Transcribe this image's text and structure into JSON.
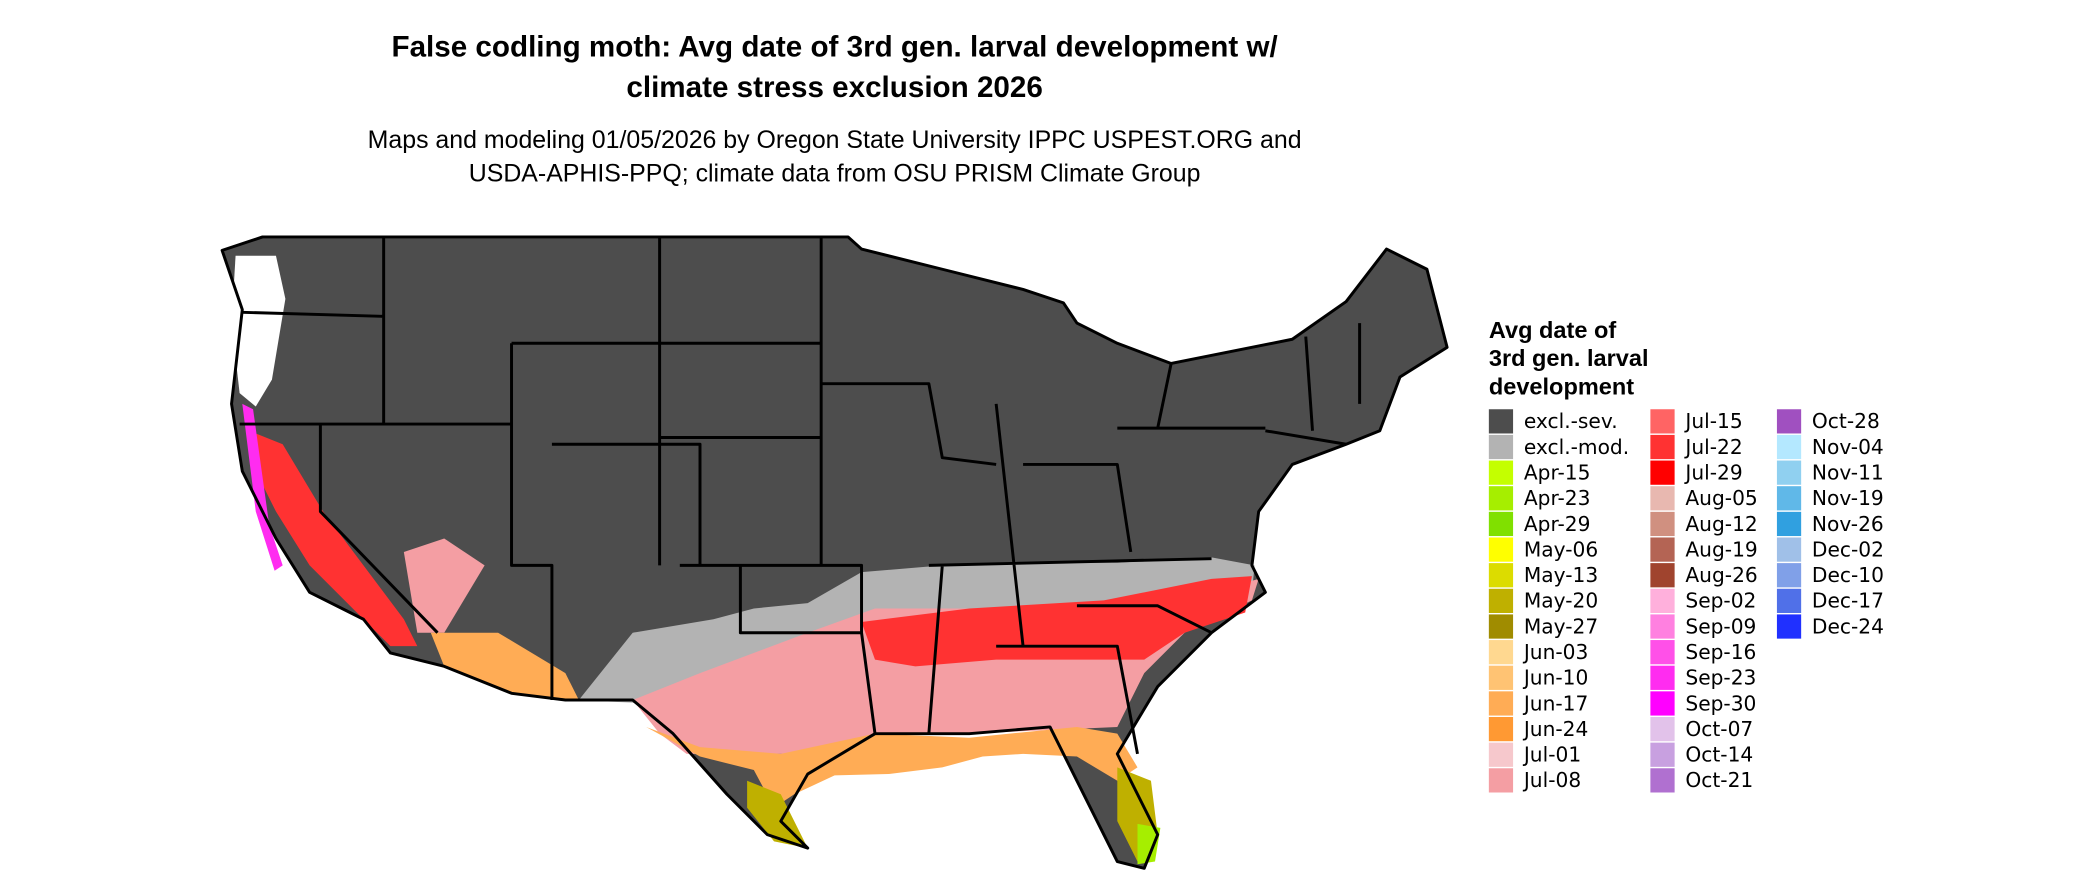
{
  "header": {
    "title_lines": [
      "False codling moth: Avg date of 3rd gen. larval development w/",
      "climate stress exclusion 2026"
    ],
    "subtitle_lines": [
      "Maps and modeling 01/05/2026 by Oregon State University IPPC USPEST.ORG and",
      "USDA-APHIS-PPQ; climate data from OSU PRISM Climate Group"
    ]
  },
  "legend": {
    "title_lines": [
      "Avg date of",
      "3rd gen. larval",
      "development"
    ],
    "items": [
      {
        "label": "excl.-sev.",
        "color": "#4d4d4d"
      },
      {
        "label": "excl.-mod.",
        "color": "#b3b3b3"
      },
      {
        "label": "Apr-15",
        "color": "#c4ff00"
      },
      {
        "label": "Apr-23",
        "color": "#a6ee00"
      },
      {
        "label": "Apr-29",
        "color": "#80e000"
      },
      {
        "label": "May-06",
        "color": "#ffff00"
      },
      {
        "label": "May-13",
        "color": "#dcdc00"
      },
      {
        "label": "May-20",
        "color": "#bfb000"
      },
      {
        "label": "May-27",
        "color": "#a08c00"
      },
      {
        "label": "Jun-03",
        "color": "#ffd890"
      },
      {
        "label": "Jun-10",
        "color": "#ffc373"
      },
      {
        "label": "Jun-17",
        "color": "#ffac55"
      },
      {
        "label": "Jun-24",
        "color": "#ff9933"
      },
      {
        "label": "Jul-01",
        "color": "#f6c8cc"
      },
      {
        "label": "Jul-08",
        "color": "#f49ea3"
      },
      {
        "label": "Jul-15",
        "color": "#ff6464"
      },
      {
        "label": "Jul-22",
        "color": "#ff3232"
      },
      {
        "label": "Jul-29",
        "color": "#ff0000"
      },
      {
        "label": "Aug-05",
        "color": "#e8b8b0"
      },
      {
        "label": "Aug-12",
        "color": "#d09080"
      },
      {
        "label": "Aug-19",
        "color": "#b46454"
      },
      {
        "label": "Aug-26",
        "color": "#a0442e"
      },
      {
        "label": "Sep-02",
        "color": "#ffb0dc"
      },
      {
        "label": "Sep-09",
        "color": "#ff80e0"
      },
      {
        "label": "Sep-16",
        "color": "#ff50e8"
      },
      {
        "label": "Sep-23",
        "color": "#ff2cf0"
      },
      {
        "label": "Sep-30",
        "color": "#ff00ff"
      },
      {
        "label": "Oct-07",
        "color": "#e2c2ea"
      },
      {
        "label": "Oct-14",
        "color": "#c8a0e0"
      },
      {
        "label": "Oct-21",
        "color": "#b070d0"
      },
      {
        "label": "Oct-28",
        "color": "#a050c0"
      },
      {
        "label": "Nov-04",
        "color": "#b4e8ff"
      },
      {
        "label": "Nov-11",
        "color": "#90d0f0"
      },
      {
        "label": "Nov-19",
        "color": "#60b8e8"
      },
      {
        "label": "Nov-26",
        "color": "#30a0e0"
      },
      {
        "label": "Dec-02",
        "color": "#a0c0e8"
      },
      {
        "label": "Dec-10",
        "color": "#80a0e8"
      },
      {
        "label": "Dec-17",
        "color": "#5070e8"
      },
      {
        "label": "Dec-24",
        "color": "#2030ff"
      }
    ]
  }
}
